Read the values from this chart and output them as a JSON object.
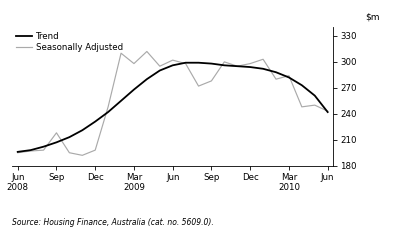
{
  "ylim": [
    180,
    340
  ],
  "yticks": [
    180,
    210,
    240,
    270,
    300,
    330
  ],
  "x_labels": [
    "Jun\n2008",
    "Sep",
    "Dec",
    "Mar\n2009",
    "Jun",
    "Sep",
    "Dec",
    "Mar\n2010",
    "Jun"
  ],
  "x_tick_positions": [
    0,
    1,
    2,
    3,
    4,
    5,
    6,
    7,
    8
  ],
  "trend_x": [
    0,
    0.333,
    0.667,
    1,
    1.333,
    1.667,
    2,
    2.333,
    2.667,
    3,
    3.333,
    3.667,
    4,
    4.333,
    4.667,
    5,
    5.333,
    5.667,
    6,
    6.333,
    6.667,
    7,
    7.333,
    7.667,
    8
  ],
  "trend_y": [
    196,
    198,
    202,
    207,
    213,
    221,
    231,
    242,
    255,
    268,
    280,
    290,
    296,
    299,
    299,
    298,
    296,
    295,
    294,
    292,
    288,
    282,
    273,
    261,
    242
  ],
  "seasonal_x": [
    0,
    0.333,
    0.667,
    1,
    1.333,
    1.667,
    2,
    2.333,
    2.667,
    3,
    3.333,
    3.667,
    4,
    4.333,
    4.667,
    5,
    5.333,
    5.667,
    6,
    6.333,
    6.667,
    7,
    7.333,
    7.667,
    8
  ],
  "seasonal_y": [
    195,
    197,
    198,
    218,
    195,
    192,
    198,
    248,
    310,
    298,
    312,
    295,
    302,
    298,
    272,
    278,
    300,
    295,
    298,
    303,
    280,
    284,
    248,
    250,
    243
  ],
  "trend_color": "#000000",
  "seasonal_color": "#aaaaaa",
  "legend_order": [
    "trend",
    "seasonal"
  ],
  "source_text": "Source: Housing Finance, Australia (cat. no. 5609.0).",
  "background_color": "#ffffff"
}
